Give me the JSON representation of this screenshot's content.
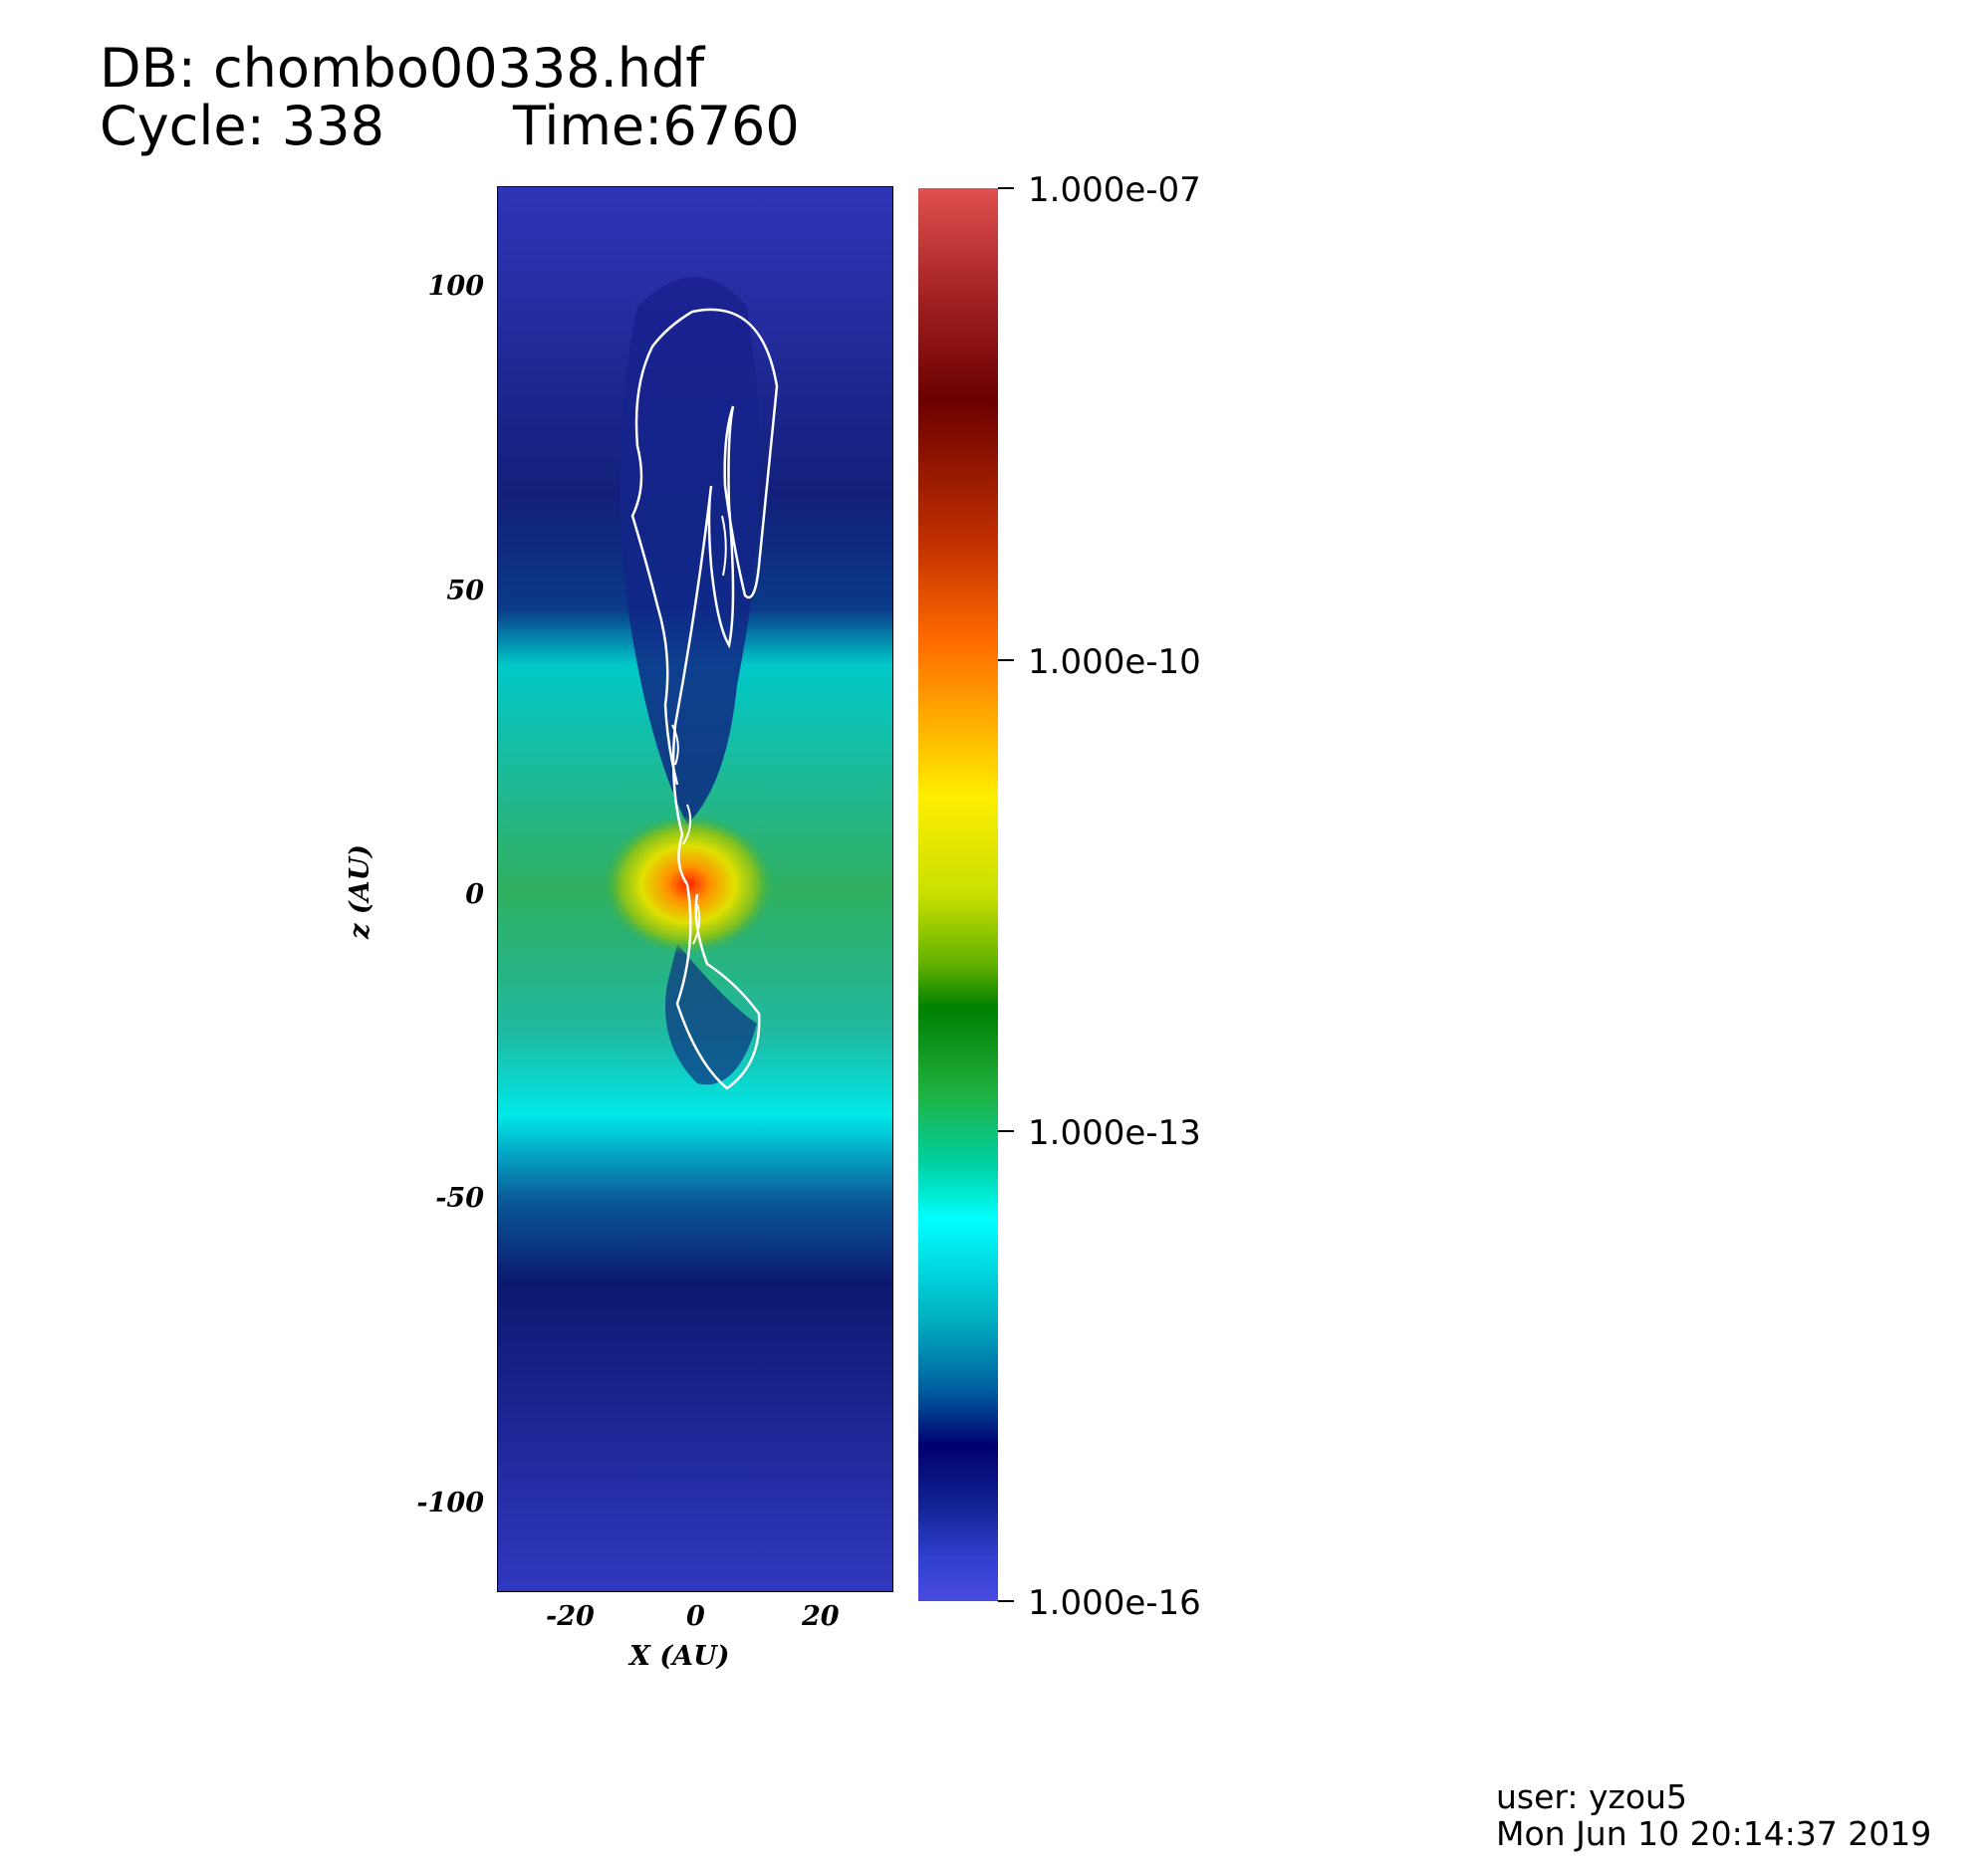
{
  "header": {
    "db": "DB: chombo00338.hdf",
    "cycle": "Cycle: 338",
    "time": "Time:6760"
  },
  "plot": {
    "x_axis": {
      "label": "X (AU)",
      "ticks": [
        "-20",
        "0",
        "20"
      ],
      "range": [
        -33,
        33
      ]
    },
    "z_axis": {
      "label": "z (AU)",
      "ticks": [
        "100",
        "50",
        "0",
        "-50",
        "-100"
      ],
      "range": [
        -116,
        116
      ]
    }
  },
  "colorbar": {
    "scale": "log",
    "labels": [
      "1.000e-07",
      "1.000e-10",
      "1.000e-13",
      "1.000e-16"
    ]
  },
  "footer": {
    "user": "user: yzou5",
    "date": "Mon Jun 10 20:14:37 2019"
  },
  "colors": {
    "contour": "#ffffff",
    "background": "#2a2fb0"
  }
}
